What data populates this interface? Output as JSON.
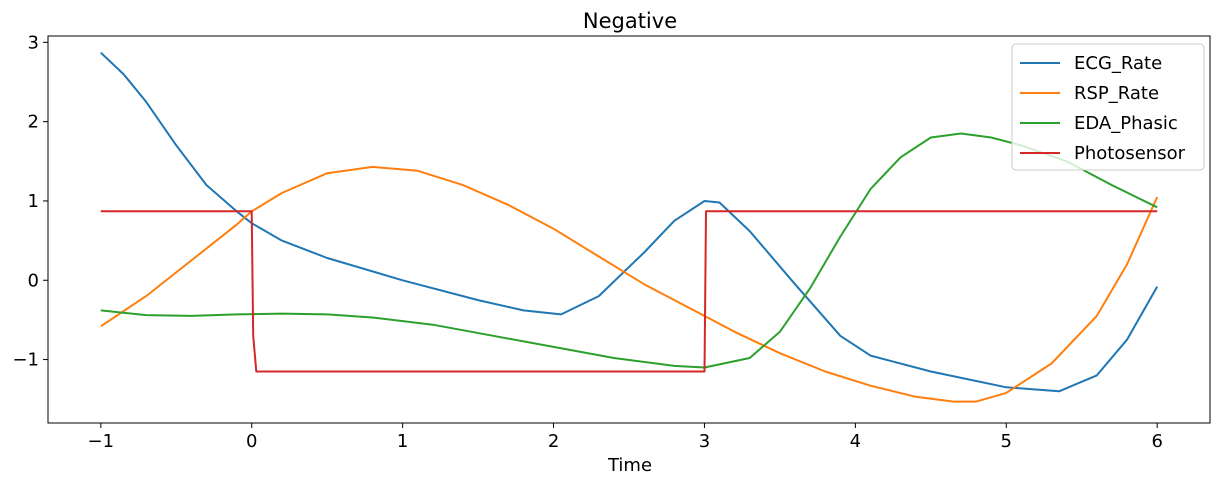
{
  "chart_data": {
    "type": "line",
    "title": "Negative",
    "xlabel": "Time",
    "ylabel": "",
    "xlim": [
      -1.35,
      6.35
    ],
    "ylim": [
      -1.8,
      3.08
    ],
    "xticks": [
      -1,
      0,
      1,
      2,
      3,
      4,
      5,
      6
    ],
    "xtick_labels": [
      "−1",
      "0",
      "1",
      "2",
      "3",
      "4",
      "5",
      "6"
    ],
    "yticks": [
      -1,
      0,
      1,
      2,
      3
    ],
    "ytick_labels": [
      "−1",
      "0",
      "1",
      "2",
      "3"
    ],
    "grid": false,
    "legend_position": "top-right",
    "series": [
      {
        "name": "ECG_Rate",
        "color": "#1f77b4",
        "x": [
          -1.0,
          -0.85,
          -0.7,
          -0.5,
          -0.3,
          -0.1,
          0.0,
          0.2,
          0.5,
          1.0,
          1.5,
          1.8,
          2.05,
          2.3,
          2.6,
          2.8,
          3.0,
          3.1,
          3.3,
          3.6,
          3.9,
          4.1,
          4.5,
          5.0,
          5.35,
          5.6,
          5.8,
          6.0
        ],
        "y": [
          2.87,
          2.6,
          2.25,
          1.7,
          1.2,
          0.87,
          0.72,
          0.5,
          0.28,
          0.0,
          -0.25,
          -0.38,
          -0.43,
          -0.2,
          0.35,
          0.75,
          1.0,
          0.98,
          0.62,
          -0.05,
          -0.7,
          -0.95,
          -1.15,
          -1.35,
          -1.4,
          -1.2,
          -0.75,
          -0.08
        ]
      },
      {
        "name": "RSP_Rate",
        "color": "#ff7f0e",
        "x": [
          -1.0,
          -0.7,
          -0.4,
          -0.1,
          0.0,
          0.2,
          0.5,
          0.8,
          1.1,
          1.4,
          1.7,
          2.0,
          2.3,
          2.6,
          2.9,
          3.2,
          3.5,
          3.8,
          4.1,
          4.4,
          4.65,
          4.8,
          5.0,
          5.3,
          5.6,
          5.8,
          6.0
        ],
        "y": [
          -0.58,
          -0.2,
          0.25,
          0.7,
          0.87,
          1.1,
          1.35,
          1.43,
          1.38,
          1.2,
          0.95,
          0.65,
          0.3,
          -0.05,
          -0.35,
          -0.65,
          -0.92,
          -1.15,
          -1.33,
          -1.47,
          -1.53,
          -1.53,
          -1.42,
          -1.05,
          -0.45,
          0.2,
          1.05
        ]
      },
      {
        "name": "EDA_Phasic",
        "color": "#2ca02c",
        "x": [
          -1.0,
          -0.7,
          -0.4,
          -0.1,
          0.2,
          0.5,
          0.8,
          1.2,
          1.6,
          2.0,
          2.4,
          2.8,
          3.0,
          3.3,
          3.5,
          3.7,
          3.9,
          4.1,
          4.3,
          4.5,
          4.7,
          4.9,
          5.1,
          5.4,
          5.7,
          6.0
        ],
        "y": [
          -0.38,
          -0.44,
          -0.45,
          -0.43,
          -0.42,
          -0.43,
          -0.47,
          -0.56,
          -0.7,
          -0.84,
          -0.98,
          -1.08,
          -1.1,
          -0.98,
          -0.65,
          -0.1,
          0.55,
          1.15,
          1.55,
          1.8,
          1.85,
          1.8,
          1.7,
          1.5,
          1.2,
          0.92
        ]
      },
      {
        "name": "Photosensor",
        "color": "#d62728",
        "x": [
          -1.0,
          0.0,
          0.01,
          0.03,
          2.99,
          3.0,
          3.01,
          6.0
        ],
        "y": [
          0.87,
          0.87,
          -0.7,
          -1.15,
          -1.15,
          -1.15,
          0.87,
          0.87
        ]
      }
    ]
  }
}
